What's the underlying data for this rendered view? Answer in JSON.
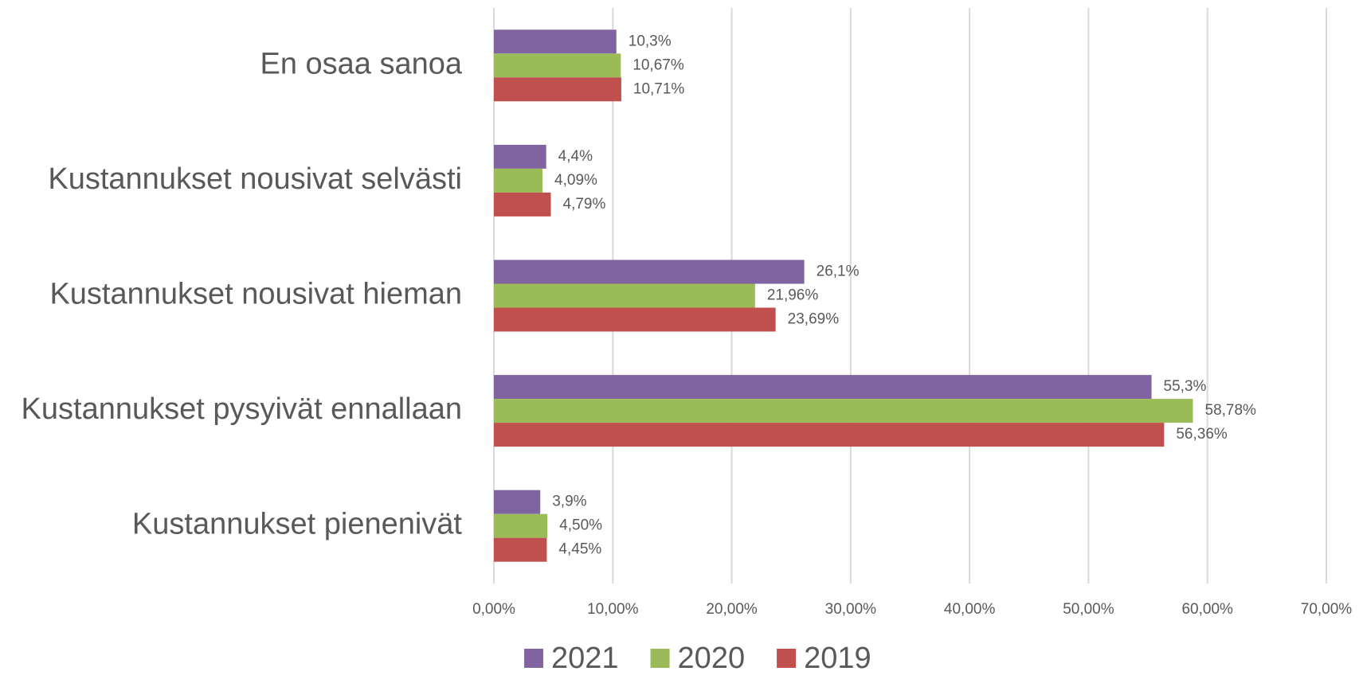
{
  "chart_data": {
    "type": "barh",
    "categories": [
      "En osaa sanoa",
      "Kustannukset nousivat selvästi",
      "Kustannukset nousivat hieman",
      "Kustannukset pysyivät ennallaan",
      "Kustannukset pienenivät"
    ],
    "series": [
      {
        "name": "2021",
        "color": "#8064a2",
        "values": [
          10.3,
          4.4,
          26.1,
          55.3,
          3.9
        ],
        "value_labels": [
          "10,3%",
          "4,4%",
          "26,1%",
          "55,3%",
          "3,9%"
        ]
      },
      {
        "name": "2020",
        "color": "#9bbb59",
        "values": [
          10.67,
          4.09,
          21.96,
          58.78,
          4.5
        ],
        "value_labels": [
          "10,67%",
          "4,09%",
          "21,96%",
          "58,78%",
          "4,50%"
        ]
      },
      {
        "name": "2019",
        "color": "#c0504d",
        "values": [
          10.71,
          4.79,
          23.69,
          56.36,
          4.45
        ],
        "value_labels": [
          "10,71%",
          "4,79%",
          "23,69%",
          "56,36%",
          "4,45%"
        ]
      }
    ],
    "xlim": [
      0,
      70
    ],
    "xticks": [
      {
        "value": 0,
        "label": "0,00%"
      },
      {
        "value": 10,
        "label": "10,00%"
      },
      {
        "value": 20,
        "label": "20,00%"
      },
      {
        "value": 30,
        "label": "30,00%"
      },
      {
        "value": 40,
        "label": "40,00%"
      },
      {
        "value": 50,
        "label": "50,00%"
      },
      {
        "value": 60,
        "label": "60,00%"
      },
      {
        "value": 70,
        "label": "70,00%"
      }
    ],
    "grid": true,
    "legend": "bottom"
  }
}
